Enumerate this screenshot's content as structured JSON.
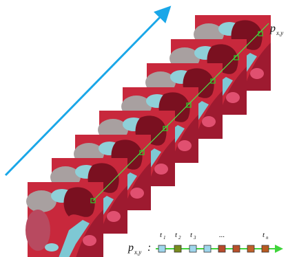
{
  "top_label": {
    "base": "p",
    "sub": "x,y"
  },
  "series_label": {
    "base": "p",
    "sub": "x,y",
    "separator": ":"
  },
  "time_labels": [
    {
      "base": "t",
      "sub": "1"
    },
    {
      "base": "t",
      "sub": "2"
    },
    {
      "base": "t",
      "sub": "3"
    }
  ],
  "ellipsis": "...",
  "last_label": {
    "base": "t",
    "sub": "n"
  }
}
